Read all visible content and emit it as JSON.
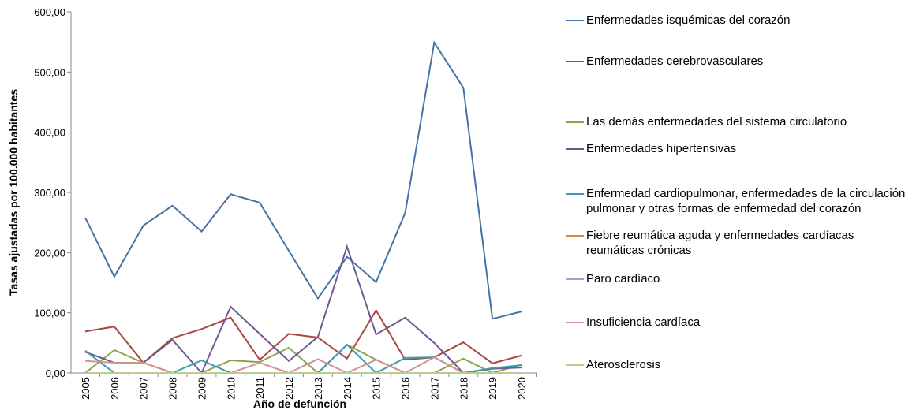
{
  "chart_data": {
    "type": "line",
    "xlabel": "Año de defunción",
    "ylabel": "Tasas ajustadas por 100.000 habitantes",
    "x": [
      2005,
      2006,
      2007,
      2008,
      2009,
      2010,
      2011,
      2012,
      2013,
      2014,
      2015,
      2016,
      2017,
      2018,
      2019,
      2020
    ],
    "xlim": [
      2005,
      2020
    ],
    "ylim": [
      0,
      600
    ],
    "yticks": [
      {
        "value": 0,
        "label": "0,00"
      },
      {
        "value": 100,
        "label": "100,00"
      },
      {
        "value": 200,
        "label": "200,00"
      },
      {
        "value": 300,
        "label": "300,00"
      },
      {
        "value": 400,
        "label": "400,00"
      },
      {
        "value": 500,
        "label": "500,00"
      },
      {
        "value": 600,
        "label": "600,00"
      }
    ],
    "grid": false,
    "legend": "right",
    "series": [
      {
        "name": "Enfermedades isquémicas del corazón",
        "color": "#4572A7",
        "values": [
          258,
          160,
          245,
          278,
          235,
          297,
          283,
          203,
          124,
          193,
          151,
          266,
          549,
          474,
          90,
          102
        ]
      },
      {
        "name": "Enfermedades cerebrovasculares",
        "color": "#AA4643",
        "values": [
          69,
          77,
          17,
          58,
          73,
          92,
          22,
          65,
          59,
          24,
          104,
          22,
          26,
          51,
          16,
          29
        ]
      },
      {
        "name": "Las demás enfermedades del sistema circulatorio",
        "color": "#89A54E",
        "values": [
          0,
          38,
          17,
          0,
          0,
          21,
          18,
          42,
          0,
          47,
          22,
          0,
          0,
          24,
          0,
          14
        ]
      },
      {
        "name": "Enfermedades hipertensivas",
        "color": "#71588F",
        "values": [
          35,
          17,
          17,
          55,
          0,
          110,
          65,
          20,
          60,
          210,
          64,
          92,
          50,
          0,
          7,
          9
        ]
      },
      {
        "name": "Enfermedad cardiopulmonar, enfermedades de la circulación pulmonar y otras formas de enfermedad del corazón",
        "color": "#4198AF",
        "values": [
          37,
          0,
          0,
          0,
          21,
          0,
          0,
          0,
          0,
          47,
          0,
          25,
          26,
          0,
          8,
          13
        ]
      },
      {
        "name": "Fiebre reumática aguda y enfermedades cardíacas reumáticas crónicas",
        "color": "#DB843D",
        "values": [
          0,
          0,
          0,
          0,
          0,
          0,
          0,
          0,
          0,
          0,
          0,
          0,
          0,
          0,
          0,
          0
        ]
      },
      {
        "name": "Paro cardíaco",
        "color": "#93A9CF",
        "values": [
          0,
          0,
          0,
          0,
          0,
          0,
          0,
          0,
          0,
          0,
          0,
          0,
          0,
          0,
          0,
          0
        ]
      },
      {
        "name": "Insuficiencia cardíaca",
        "color": "#D19392",
        "values": [
          20,
          17,
          17,
          0,
          0,
          0,
          17,
          0,
          23,
          0,
          22,
          0,
          26,
          0,
          0,
          0
        ]
      },
      {
        "name": "Aterosclerosis",
        "color": "#B9CD96",
        "values": [
          0,
          0,
          0,
          0,
          0,
          0,
          0,
          0,
          0,
          0,
          0,
          0,
          0,
          0,
          0,
          0
        ]
      }
    ]
  }
}
